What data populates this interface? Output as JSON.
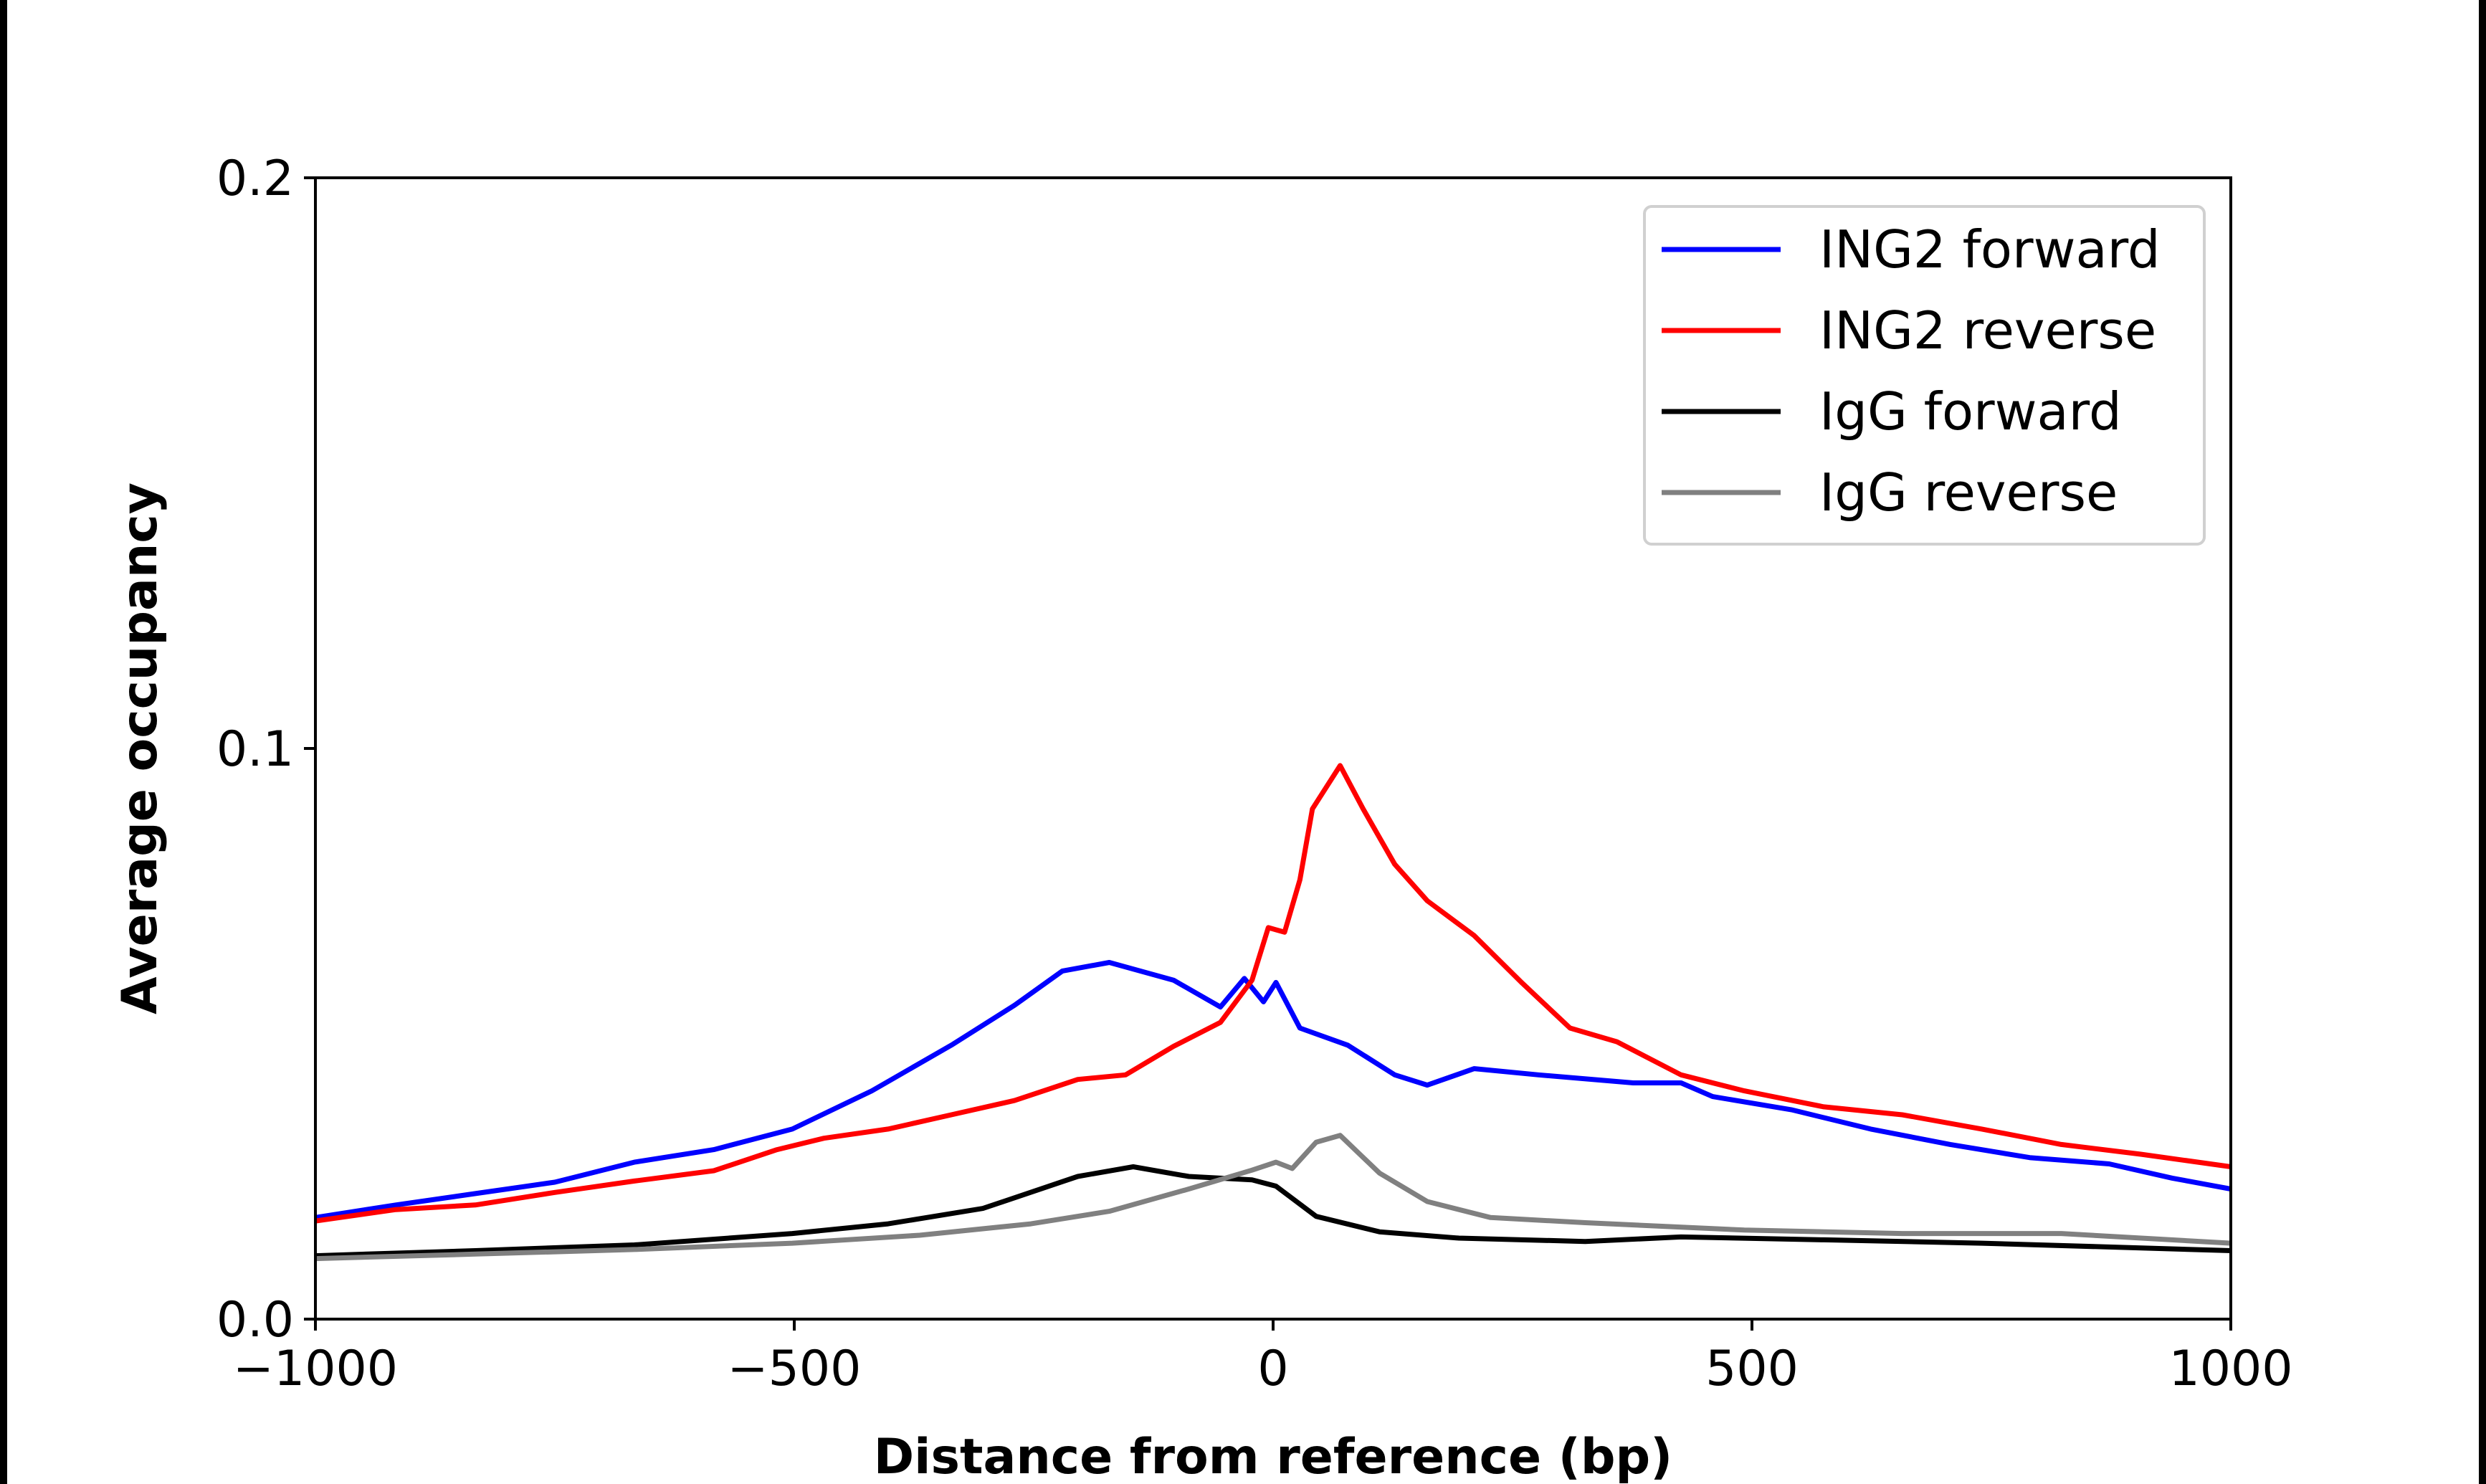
{
  "chart_data": {
    "type": "line",
    "title": "",
    "xlabel": "Distance from reference (bp)",
    "ylabel": "Average occupancy",
    "xlim": [
      -1000,
      1000
    ],
    "ylim": [
      0,
      0.2
    ],
    "xticks": [
      -1000,
      -500,
      0,
      500,
      1000
    ],
    "xtick_labels": [
      "−1000",
      "−500",
      "0",
      "500",
      "1000"
    ],
    "yticks": [
      0,
      0.1,
      0.2
    ],
    "ytick_labels": [
      "0.0",
      "0.1",
      "0.2"
    ],
    "grid": false,
    "legend_position": "top-right",
    "series": [
      {
        "name": "ING2 forward",
        "color": "#0000ff",
        "x": [
          -1000,
          -916,
          -833,
          -750,
          -667,
          -584,
          -502,
          -419,
          -336,
          -270,
          -220,
          -171,
          -104,
          -55,
          -30,
          -10,
          3,
          28,
          78,
          127,
          161,
          210,
          277,
          376,
          426,
          459,
          541,
          624,
          707,
          790,
          873,
          939,
          1000
        ],
        "y": [
          0.0178,
          0.02,
          0.022,
          0.024,
          0.0275,
          0.0297,
          0.0333,
          0.04,
          0.048,
          0.055,
          0.061,
          0.0625,
          0.0594,
          0.0547,
          0.0597,
          0.0556,
          0.059,
          0.051,
          0.048,
          0.0428,
          0.041,
          0.0439,
          0.0428,
          0.0414,
          0.0414,
          0.039,
          0.0367,
          0.0333,
          0.0306,
          0.0283,
          0.0272,
          0.0247,
          0.0228
        ]
      },
      {
        "name": "ING2 reverse",
        "color": "#ff0000",
        "x": [
          -1000,
          -916,
          -833,
          -750,
          -667,
          -584,
          -518,
          -469,
          -402,
          -336,
          -270,
          -204,
          -154,
          -104,
          -55,
          -22,
          -5,
          12,
          28,
          41,
          70,
          94,
          127,
          161,
          210,
          260,
          310,
          359,
          426,
          492,
          575,
          657,
          740,
          823,
          906,
          1000
        ],
        "y": [
          0.0172,
          0.0192,
          0.02,
          0.0222,
          0.0242,
          0.026,
          0.0297,
          0.0317,
          0.0333,
          0.0358,
          0.0383,
          0.042,
          0.0428,
          0.0478,
          0.052,
          0.0594,
          0.0686,
          0.0678,
          0.077,
          0.0894,
          0.097,
          0.0894,
          0.0797,
          0.0733,
          0.0672,
          0.0589,
          0.051,
          0.0486,
          0.0428,
          0.04,
          0.0372,
          0.0358,
          0.0333,
          0.0306,
          0.0289,
          0.0267
        ]
      },
      {
        "name": "IgG forward",
        "color": "#000000",
        "x": [
          -1000,
          -833,
          -667,
          -502,
          -402,
          -303,
          -204,
          -146,
          -88,
          -22,
          3,
          45,
          111,
          194,
          326,
          426,
          575,
          740,
          1000
        ],
        "y": [
          0.0111,
          0.012,
          0.013,
          0.015,
          0.0167,
          0.0194,
          0.025,
          0.0267,
          0.025,
          0.0244,
          0.0233,
          0.018,
          0.0153,
          0.0142,
          0.0136,
          0.0144,
          0.0139,
          0.0133,
          0.012
        ]
      },
      {
        "name": "IgG reverse",
        "color": "#808080",
        "x": [
          -1000,
          -833,
          -667,
          -502,
          -369,
          -253,
          -171,
          -88,
          -22,
          3,
          20,
          45,
          70,
          111,
          161,
          227,
          326,
          492,
          657,
          823,
          1000
        ],
        "y": [
          0.0106,
          0.0114,
          0.0122,
          0.0133,
          0.0147,
          0.0167,
          0.0189,
          0.0228,
          0.0261,
          0.0275,
          0.0264,
          0.031,
          0.0322,
          0.0256,
          0.0206,
          0.0178,
          0.0169,
          0.0156,
          0.015,
          0.015,
          0.0133
        ]
      }
    ]
  }
}
